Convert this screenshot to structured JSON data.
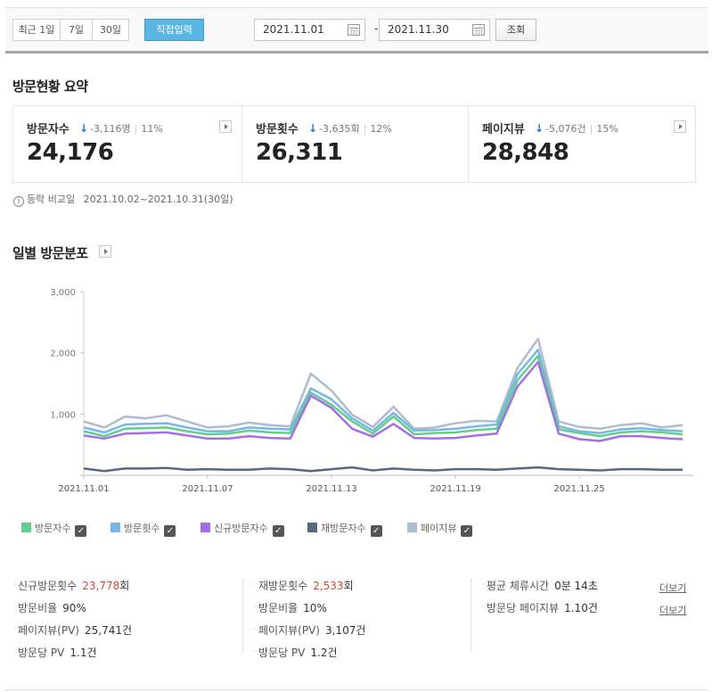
{
  "filter": {
    "periods": [
      "최근 1일",
      "7일",
      "30일",
      "직접입력"
    ],
    "active_period": "직접입력",
    "start_date": "2021.11.01",
    "end_date": "2021.11.30",
    "separator": "-",
    "search_label": "조회"
  },
  "summary": {
    "title": "방문현황 요약",
    "cards": [
      {
        "label": "방문자수",
        "diff": "-3,116명",
        "percent": "11%",
        "value": "24,176"
      },
      {
        "label": "방문횟수",
        "diff": "-3,635회",
        "percent": "12%",
        "value": "26,311"
      },
      {
        "label": "페이지뷰",
        "diff": "-5,076건",
        "percent": "15%",
        "value": "28,848"
      }
    ],
    "note_label": "등락 비교일",
    "note_range": "2021.10.02~2021.10.31(30일)"
  },
  "chart_title": "일별 방문분포",
  "chart_data": {
    "type": "line",
    "x": [
      "2021.11.01",
      "2021.11.02",
      "2021.11.03",
      "2021.11.04",
      "2021.11.05",
      "2021.11.06",
      "2021.11.07",
      "2021.11.08",
      "2021.11.09",
      "2021.11.10",
      "2021.11.11",
      "2021.11.12",
      "2021.11.13",
      "2021.11.14",
      "2021.11.15",
      "2021.11.16",
      "2021.11.17",
      "2021.11.18",
      "2021.11.19",
      "2021.11.20",
      "2021.11.21",
      "2021.11.22",
      "2021.11.23",
      "2021.11.24",
      "2021.11.25",
      "2021.11.26",
      "2021.11.27",
      "2021.11.28",
      "2021.11.29",
      "2021.11.30"
    ],
    "xticks": [
      "2021.11.01",
      "2021.11.07",
      "2021.11.13",
      "2021.11.19",
      "2021.11.25"
    ],
    "yticks": [
      "3,000",
      "2,000",
      "1,000"
    ],
    "ylim": [
      0,
      3000
    ],
    "grid": false,
    "series": [
      {
        "name": "방문자수",
        "color": "#5fcf8e",
        "values": [
          720,
          640,
          760,
          770,
          780,
          720,
          670,
          680,
          730,
          700,
          690,
          1350,
          1150,
          880,
          680,
          960,
          670,
          690,
          700,
          740,
          760,
          1550,
          1950,
          750,
          690,
          640,
          700,
          720,
          700,
          670
        ]
      },
      {
        "name": "방문횟수",
        "color": "#7ab5e8",
        "values": [
          780,
          700,
          830,
          840,
          850,
          780,
          720,
          720,
          780,
          760,
          750,
          1420,
          1240,
          930,
          730,
          1020,
          730,
          740,
          760,
          800,
          830,
          1650,
          2050,
          800,
          720,
          690,
          750,
          770,
          740,
          720
        ]
      },
      {
        "name": "신규방문자수",
        "color": "#a46ee4",
        "values": [
          650,
          600,
          680,
          690,
          700,
          650,
          600,
          600,
          640,
          610,
          600,
          1300,
          1100,
          760,
          630,
          840,
          610,
          600,
          610,
          650,
          680,
          1450,
          1850,
          680,
          590,
          560,
          640,
          640,
          610,
          590
        ]
      },
      {
        "name": "재방문자수",
        "color": "#5a6782",
        "values": [
          110,
          70,
          110,
          110,
          120,
          90,
          100,
          90,
          90,
          110,
          100,
          70,
          100,
          130,
          80,
          110,
          90,
          80,
          100,
          100,
          90,
          110,
          130,
          100,
          90,
          80,
          100,
          100,
          90,
          90
        ]
      },
      {
        "name": "페이지뷰",
        "color": "#aebccc",
        "values": [
          880,
          780,
          960,
          930,
          980,
          880,
          780,
          800,
          860,
          820,
          800,
          1660,
          1380,
          990,
          790,
          1120,
          760,
          780,
          850,
          890,
          880,
          1750,
          2230,
          880,
          790,
          760,
          820,
          850,
          780,
          820
        ]
      }
    ]
  },
  "stats": [
    [
      {
        "label": "신규방문횟수",
        "value": "23,778",
        "unit": "회",
        "red": true
      },
      {
        "label": "방문비율",
        "value": "90%",
        "unit": "",
        "red": false
      },
      {
        "label": "페이지뷰(PV)",
        "value": "25,741",
        "unit": "건",
        "red": false
      },
      {
        "label": "방문당 PV",
        "value": "1.1",
        "unit": "건",
        "red": false
      }
    ],
    [
      {
        "label": "재방문횟수",
        "value": "2,533",
        "unit": "회",
        "red": true
      },
      {
        "label": "방문비율",
        "value": "10%",
        "unit": "",
        "red": false
      },
      {
        "label": "페이지뷰(PV)",
        "value": "3,107",
        "unit": "건",
        "red": false
      },
      {
        "label": "방문당 PV",
        "value": "1.2",
        "unit": "건",
        "red": false
      }
    ],
    [
      {
        "label": "평균 체류시간",
        "value": "0분 14초",
        "unit": "",
        "red": false
      },
      {
        "label": "방문당 페이지뷰",
        "value": "1.10",
        "unit": "건",
        "red": false
      }
    ]
  ],
  "more_link": "더보기",
  "colors": {
    "accent": "#5bb6e4",
    "down_arrow": "#2a70c8",
    "highlight_red": "#e0412f"
  }
}
